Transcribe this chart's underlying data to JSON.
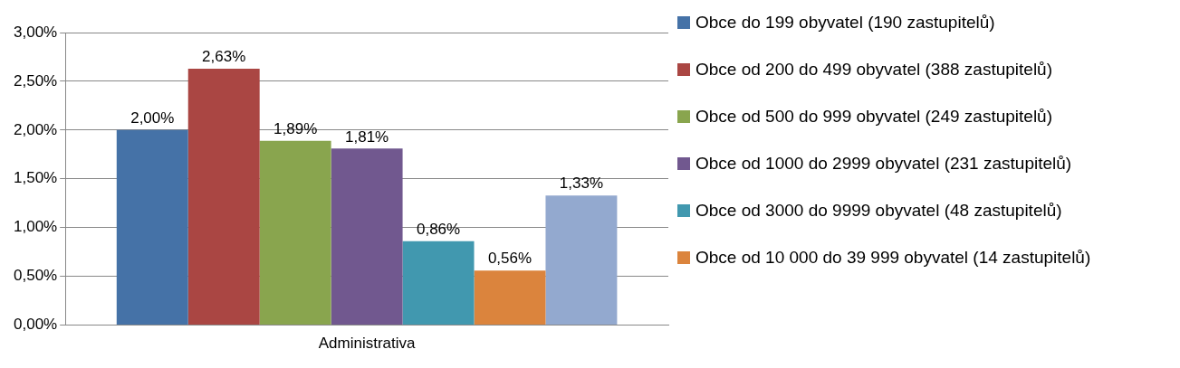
{
  "chart_data": {
    "type": "bar",
    "categories": [
      "Administrativa"
    ],
    "series": [
      {
        "name": "Obce do 199 obyvatel (190 zastupitelů)",
        "color": "#4572a7",
        "values": [
          2.0
        ],
        "value_labels": [
          "2,00%"
        ]
      },
      {
        "name": "Obce od 200 do 499 obyvatel (388 zastupitelů)",
        "color": "#aa4643",
        "values": [
          2.63
        ],
        "value_labels": [
          "2,63%"
        ]
      },
      {
        "name": "Obce od 500 do 999 obyvatel (249 zastupitelů)",
        "color": "#89a54e",
        "values": [
          1.89
        ],
        "value_labels": [
          "1,89%"
        ]
      },
      {
        "name": "Obce od 1000 do 2999 obyvatel (231 zastupitelů)",
        "color": "#71588f",
        "values": [
          1.81
        ],
        "value_labels": [
          "1,81%"
        ]
      },
      {
        "name": "Obce od 3000 do 9999 obyvatel (48 zastupitelů)",
        "color": "#4198af",
        "values": [
          0.86
        ],
        "value_labels": [
          "0,86%"
        ]
      },
      {
        "name": "Obce od 10 000 do 39 999 obyvatel (14 zastupitelů)",
        "color": "#db843d",
        "values": [
          0.56
        ],
        "value_labels": [
          "0,56%"
        ]
      },
      {
        "color": "#93a9cf",
        "values": [
          1.33
        ],
        "value_labels": [
          "1,33%"
        ]
      }
    ],
    "ylim": [
      0,
      3
    ],
    "yticks": [
      {
        "value": 0,
        "label": "0,00%"
      },
      {
        "value": 0.5,
        "label": "0,50%"
      },
      {
        "value": 1,
        "label": "1,00%"
      },
      {
        "value": 1.5,
        "label": "1,50%"
      },
      {
        "value": 2,
        "label": "2,00%"
      },
      {
        "value": 2.5,
        "label": "2,50%"
      },
      {
        "value": 3,
        "label": "3,00%"
      }
    ],
    "grid": "y",
    "legend": "right"
  }
}
